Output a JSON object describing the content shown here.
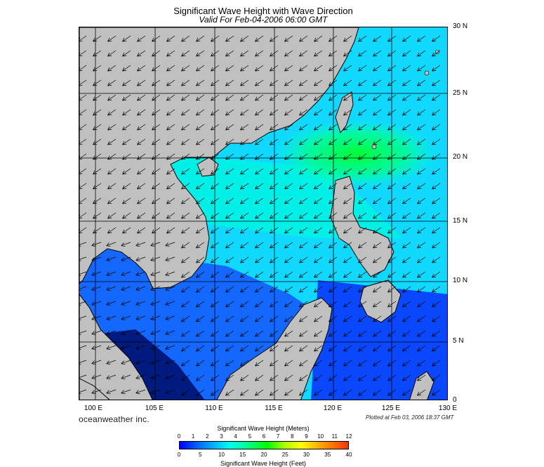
{
  "title": "Significant Wave Height with Wave Direction",
  "subtitle": "Valid For Feb-04-2006 06:00 GMT",
  "lat_labels": [
    "30 N",
    "25 N",
    "20 N",
    "15 N",
    "10 N",
    "5 N",
    "0"
  ],
  "lon_labels": [
    "100 E",
    "105 E",
    "110 E",
    "115 E",
    "120 E",
    "125 E",
    "130 E"
  ],
  "brand": "oceanweather inc.",
  "plotted": "Plotted at Feb 03, 2006 18:37 GMT",
  "legend": {
    "meters_title": "Significant Wave Height (Meters)",
    "feet_title": "Significant Wave Height (Feet)",
    "meters_ticks": [
      "0",
      "1",
      "2",
      "3",
      "4",
      "5",
      "6",
      "7",
      "8",
      "9",
      "10",
      "11",
      "12"
    ],
    "feet_ticks": [
      "0",
      "5",
      "10",
      "15",
      "20",
      "25",
      "30",
      "35",
      "40"
    ]
  },
  "colors": {
    "land": "#c0c0c0",
    "grid": "#000000",
    "low": "#0000ff",
    "mid": "#00ffee",
    "peak": "#00ff00"
  },
  "map_extent": {
    "lon": [
      100,
      130
    ],
    "lat": [
      0,
      30
    ]
  }
}
